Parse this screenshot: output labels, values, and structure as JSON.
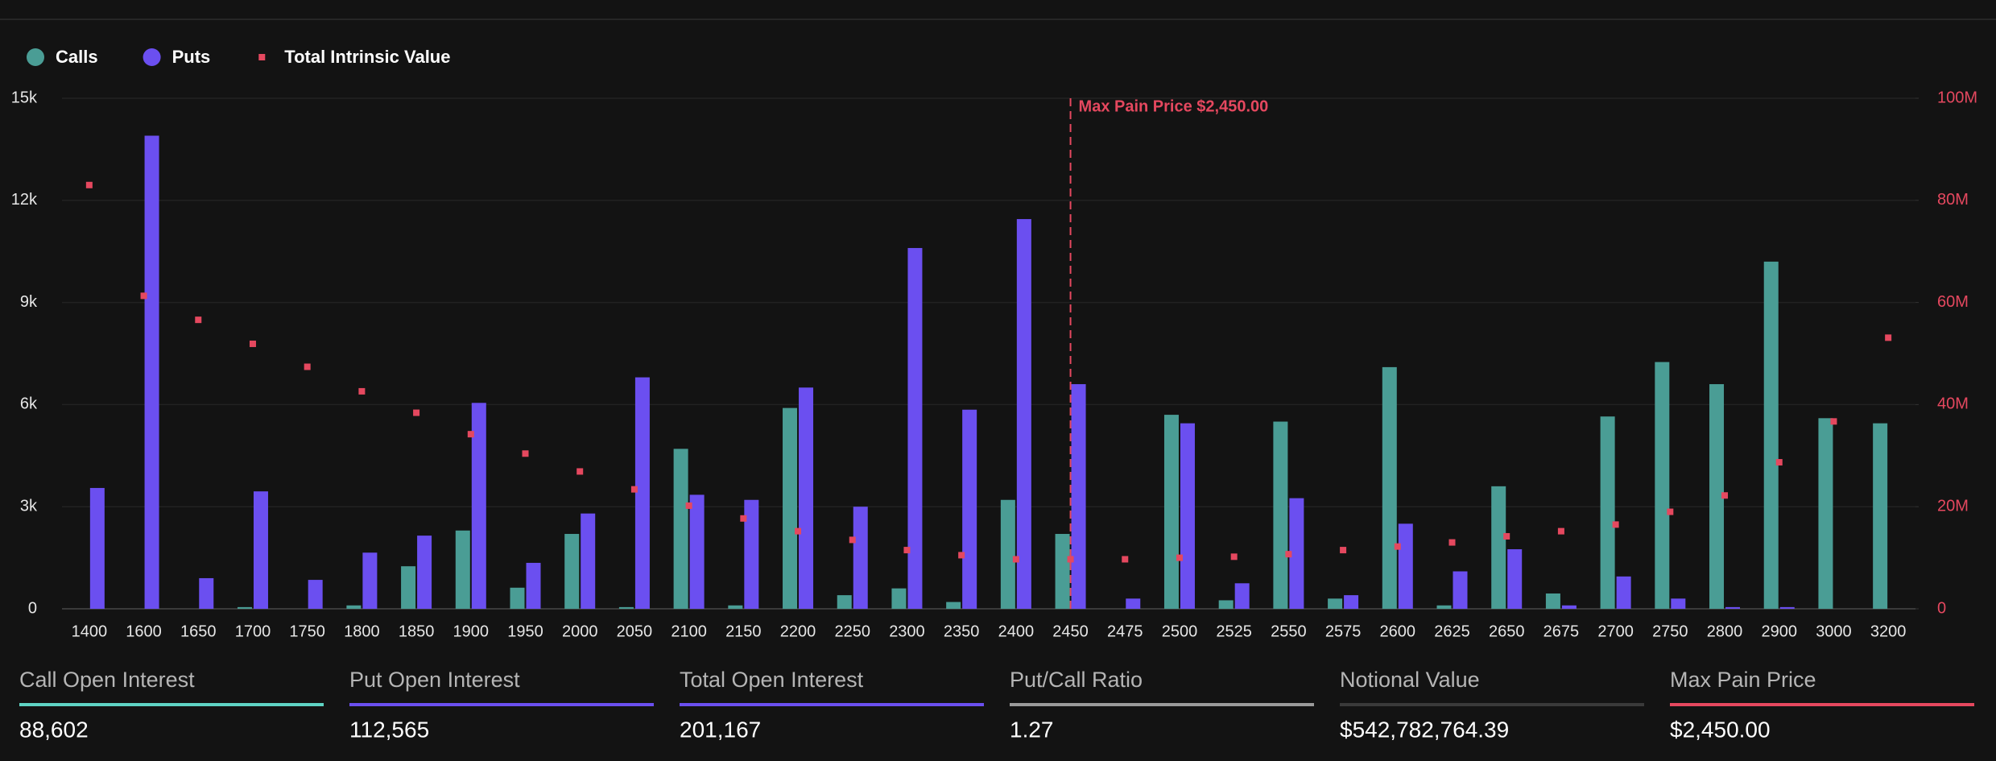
{
  "chart_data": {
    "type": "bar",
    "categories": [
      "1400",
      "1600",
      "1650",
      "1700",
      "1750",
      "1800",
      "1850",
      "1900",
      "1950",
      "2000",
      "2050",
      "2100",
      "2150",
      "2200",
      "2250",
      "2300",
      "2350",
      "2400",
      "2450",
      "2475",
      "2500",
      "2525",
      "2550",
      "2575",
      "2600",
      "2625",
      "2650",
      "2675",
      "2700",
      "2750",
      "2800",
      "2900",
      "3000",
      "3200"
    ],
    "series": [
      {
        "name": "Calls",
        "type": "bar",
        "color": "#4a9d95",
        "values": [
          0,
          0,
          0,
          50,
          0,
          100,
          1250,
          2300,
          620,
          2200,
          50,
          4700,
          100,
          5900,
          400,
          600,
          200,
          3200,
          2200,
          0,
          5700,
          250,
          5500,
          300,
          7100,
          100,
          3600,
          450,
          5650,
          7250,
          6600,
          10200,
          5600,
          5450
        ]
      },
      {
        "name": "Puts",
        "type": "bar",
        "color": "#6b4ff0",
        "values": [
          3550,
          13900,
          900,
          3450,
          850,
          1650,
          2150,
          6050,
          1350,
          2800,
          6800,
          3350,
          3200,
          6500,
          3000,
          10600,
          5850,
          11450,
          6600,
          300,
          5450,
          750,
          3250,
          400,
          2500,
          1100,
          1750,
          100,
          950,
          300,
          50,
          50,
          0,
          0
        ]
      },
      {
        "name": "Total Intrinsic Value",
        "type": "scatter",
        "axis": "y2",
        "color": "#e5485f",
        "values": [
          83000000,
          61300000,
          56600000,
          51900000,
          47400000,
          42600000,
          38400000,
          34200000,
          30400000,
          26900000,
          23400000,
          20200000,
          17700000,
          15200000,
          13500000,
          11500000,
          10500000,
          9700000,
          9700000,
          9700000,
          10000000,
          10200000,
          10700000,
          11500000,
          12200000,
          13000000,
          14200000,
          15200000,
          16500000,
          19000000,
          22200000,
          28700000,
          36700000,
          53100000
        ]
      }
    ],
    "ylim": [
      0,
      15000
    ],
    "yticks": [
      0,
      {
        "value": 3000,
        "label": "3k"
      },
      {
        "value": 6000,
        "label": "6k"
      },
      {
        "value": 9000,
        "label": "9k"
      },
      {
        "value": 12000,
        "label": "12k"
      },
      {
        "value": 15000,
        "label": "15k"
      }
    ],
    "y2lim": [
      0,
      100000000
    ],
    "y2ticks": [
      0,
      {
        "value": 20000000,
        "label": "20M"
      },
      {
        "value": 40000000,
        "label": "40M"
      },
      {
        "value": 60000000,
        "label": "60M"
      },
      {
        "value": 80000000,
        "label": "80M"
      },
      {
        "value": 100000000,
        "label": "100M"
      }
    ],
    "grid": true,
    "legend": "top-left",
    "annotation": {
      "text": "Max Pain Price $2,450.00",
      "x": "2450",
      "color": "#e5485f"
    }
  },
  "stats": [
    {
      "label": "Call Open Interest",
      "value": "88,602",
      "color": "#5fd4c4"
    },
    {
      "label": "Put Open Interest",
      "value": "112,565",
      "color": "#6b4ff0"
    },
    {
      "label": "Total Open Interest",
      "value": "201,167",
      "color": "#6b4ff0"
    },
    {
      "label": "Put/Call Ratio",
      "value": "1.27",
      "color": "#9a9a9a"
    },
    {
      "label": "Notional Value",
      "value": "$542,782,764.39",
      "color": "#3a3a3a"
    },
    {
      "label": "Max Pain Price",
      "value": "$2,450.00",
      "color": "#e5485f"
    }
  ]
}
